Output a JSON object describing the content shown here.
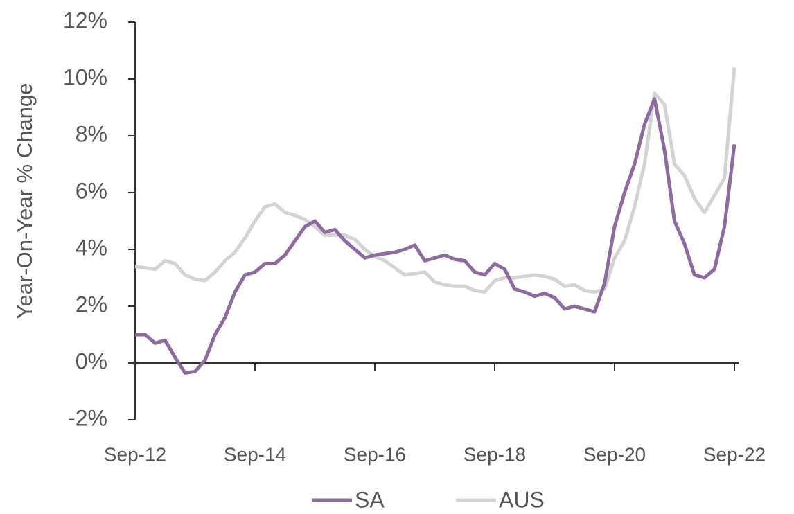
{
  "chart_data": {
    "type": "line",
    "y_label": "Year-On-Year % Change",
    "categories": [
      "Sep-12",
      null,
      null,
      null,
      null,
      null,
      null,
      null,
      null,
      null,
      null,
      null,
      "Sep-14",
      null,
      null,
      null,
      null,
      null,
      null,
      null,
      null,
      null,
      null,
      null,
      "Sep-16",
      null,
      null,
      null,
      null,
      null,
      null,
      null,
      null,
      null,
      null,
      null,
      "Sep-18",
      null,
      null,
      null,
      null,
      null,
      null,
      null,
      null,
      null,
      null,
      null,
      "Sep-20",
      null,
      null,
      null,
      null,
      null,
      null,
      null,
      null,
      null,
      null,
      null,
      "Sep-22"
    ],
    "series": [
      {
        "name": "SA",
        "color": "#8e6aa0",
        "values": [
          1.0,
          1.0,
          0.7,
          0.8,
          0.2,
          -0.35,
          -0.3,
          0.1,
          1.0,
          1.6,
          2.5,
          3.1,
          3.2,
          3.5,
          3.5,
          3.8,
          4.3,
          4.8,
          5.0,
          4.6,
          4.7,
          4.3,
          4.0,
          3.7,
          3.8,
          3.85,
          3.9,
          4.0,
          4.15,
          3.6,
          3.7,
          3.8,
          3.65,
          3.6,
          3.2,
          3.1,
          3.5,
          3.3,
          2.6,
          2.5,
          2.35,
          2.45,
          2.3,
          1.9,
          2.0,
          1.9,
          1.8,
          2.8,
          4.8,
          6.0,
          7.0,
          8.4,
          9.3,
          7.5,
          5.0,
          4.2,
          3.1,
          3.0,
          3.3,
          4.8,
          7.7
        ]
      },
      {
        "name": "AUS",
        "color": "#d3d3d3",
        "values": [
          3.4,
          3.35,
          3.3,
          3.6,
          3.5,
          3.1,
          2.95,
          2.9,
          3.2,
          3.6,
          3.9,
          4.4,
          5.0,
          5.5,
          5.6,
          5.3,
          5.2,
          5.05,
          4.8,
          4.5,
          4.5,
          4.5,
          4.35,
          4.0,
          3.75,
          3.6,
          3.35,
          3.1,
          3.15,
          3.2,
          2.85,
          2.75,
          2.7,
          2.7,
          2.55,
          2.5,
          2.9,
          3.0,
          3.0,
          3.05,
          3.1,
          3.05,
          2.95,
          2.7,
          2.75,
          2.55,
          2.5,
          2.6,
          3.7,
          4.3,
          5.5,
          7.0,
          9.5,
          9.1,
          7.0,
          6.6,
          5.8,
          5.3,
          5.9,
          6.5,
          10.4
        ]
      }
    ],
    "ylim": [
      -2,
      12
    ],
    "yticks": [
      {
        "value": -2,
        "label": "-2%"
      },
      {
        "value": 0,
        "label": "0%"
      },
      {
        "value": 2,
        "label": "2%"
      },
      {
        "value": 4,
        "label": "4%"
      },
      {
        "value": 6,
        "label": "6%"
      },
      {
        "value": 8,
        "label": "8%"
      },
      {
        "value": 10,
        "label": "10%"
      },
      {
        "value": 12,
        "label": "12%"
      }
    ],
    "legend": "bottom"
  }
}
